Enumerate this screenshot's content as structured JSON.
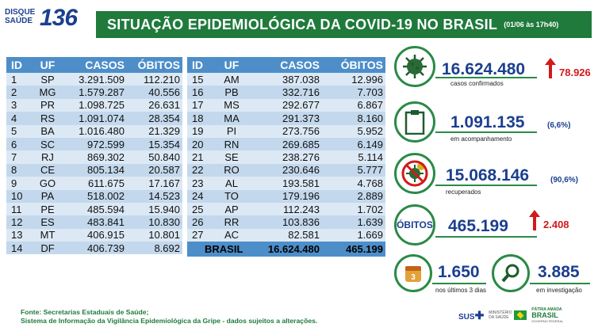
{
  "logo": {
    "line1": "DISQUE",
    "line2": "SAÚDE",
    "number": "136"
  },
  "header": {
    "title": "SITUAÇÃO EPIDEMIOLÓGICA DA COVID-19 NO BRASIL",
    "date": "(01/06 às 17h40)"
  },
  "table_headers": [
    "ID",
    "UF",
    "CASOS",
    "ÓBITOS"
  ],
  "table_left": [
    [
      "1",
      "SP",
      "3.291.509",
      "112.210"
    ],
    [
      "2",
      "MG",
      "1.579.287",
      "40.556"
    ],
    [
      "3",
      "PR",
      "1.098.725",
      "26.631"
    ],
    [
      "4",
      "RS",
      "1.091.074",
      "28.354"
    ],
    [
      "5",
      "BA",
      "1.016.480",
      "21.329"
    ],
    [
      "6",
      "SC",
      "972.599",
      "15.354"
    ],
    [
      "7",
      "RJ",
      "869.302",
      "50.840"
    ],
    [
      "8",
      "CE",
      "805.134",
      "20.587"
    ],
    [
      "9",
      "GO",
      "611.675",
      "17.167"
    ],
    [
      "10",
      "PA",
      "518.002",
      "14.523"
    ],
    [
      "11",
      "PE",
      "485.594",
      "15.940"
    ],
    [
      "12",
      "ES",
      "483.841",
      "10.830"
    ],
    [
      "13",
      "MT",
      "406.915",
      "10.801"
    ],
    [
      "14",
      "DF",
      "406.739",
      "8.692"
    ]
  ],
  "table_right": [
    [
      "15",
      "AM",
      "387.038",
      "12.996"
    ],
    [
      "16",
      "PB",
      "332.716",
      "7.703"
    ],
    [
      "17",
      "MS",
      "292.677",
      "6.867"
    ],
    [
      "18",
      "MA",
      "291.373",
      "8.160"
    ],
    [
      "19",
      "PI",
      "273.756",
      "5.952"
    ],
    [
      "20",
      "RN",
      "269.685",
      "6.149"
    ],
    [
      "21",
      "SE",
      "238.276",
      "5.114"
    ],
    [
      "22",
      "RO",
      "230.646",
      "5.777"
    ],
    [
      "23",
      "AL",
      "193.581",
      "4.768"
    ],
    [
      "24",
      "TO",
      "179.196",
      "2.889"
    ],
    [
      "25",
      "AP",
      "112.243",
      "1.702"
    ],
    [
      "26",
      "RR",
      "103.836",
      "1.639"
    ],
    [
      "27",
      "AC",
      "82.581",
      "1.669"
    ]
  ],
  "total": {
    "label": "BRASIL",
    "casos": "16.624.480",
    "obitos": "465.199"
  },
  "stats": {
    "confirmados": {
      "value": "16.624.480",
      "delta": "78.926",
      "label": "casos confirmados"
    },
    "acompanhamento": {
      "value": "1.091.135",
      "pct": "(6,6%)",
      "label": "em acompanhamento"
    },
    "recuperados": {
      "value": "15.068.146",
      "pct": "(90,6%)",
      "label": "recuperados"
    },
    "obitos": {
      "tag": "ÓBITOS",
      "value": "465.199",
      "delta": "2.408"
    },
    "ultimos": {
      "value": "1.650",
      "label": "nos últimos 3 dias",
      "cal": "3"
    },
    "investigacao": {
      "value": "3.885",
      "label": "em investigação"
    }
  },
  "footer": {
    "line1": "Fonte: Secretarias Estaduais de Saúde;",
    "line2": "Sistema de Informação da Vigilância Epidemiológica da Gripe - dados sujeitos a alterações."
  },
  "footer_logos": {
    "sus": "SUS",
    "ministerio": "MINISTÉRIO DA SAÚDE",
    "patria": "PÁTRIA AMADA",
    "brasil": "BRASIL",
    "gov": "GOVERNO FEDERAL"
  },
  "colors": {
    "green": "#1f7a3c",
    "blue": "#1b3f8f",
    "table_header": "#4d8ec9",
    "red": "#d11a1a"
  }
}
